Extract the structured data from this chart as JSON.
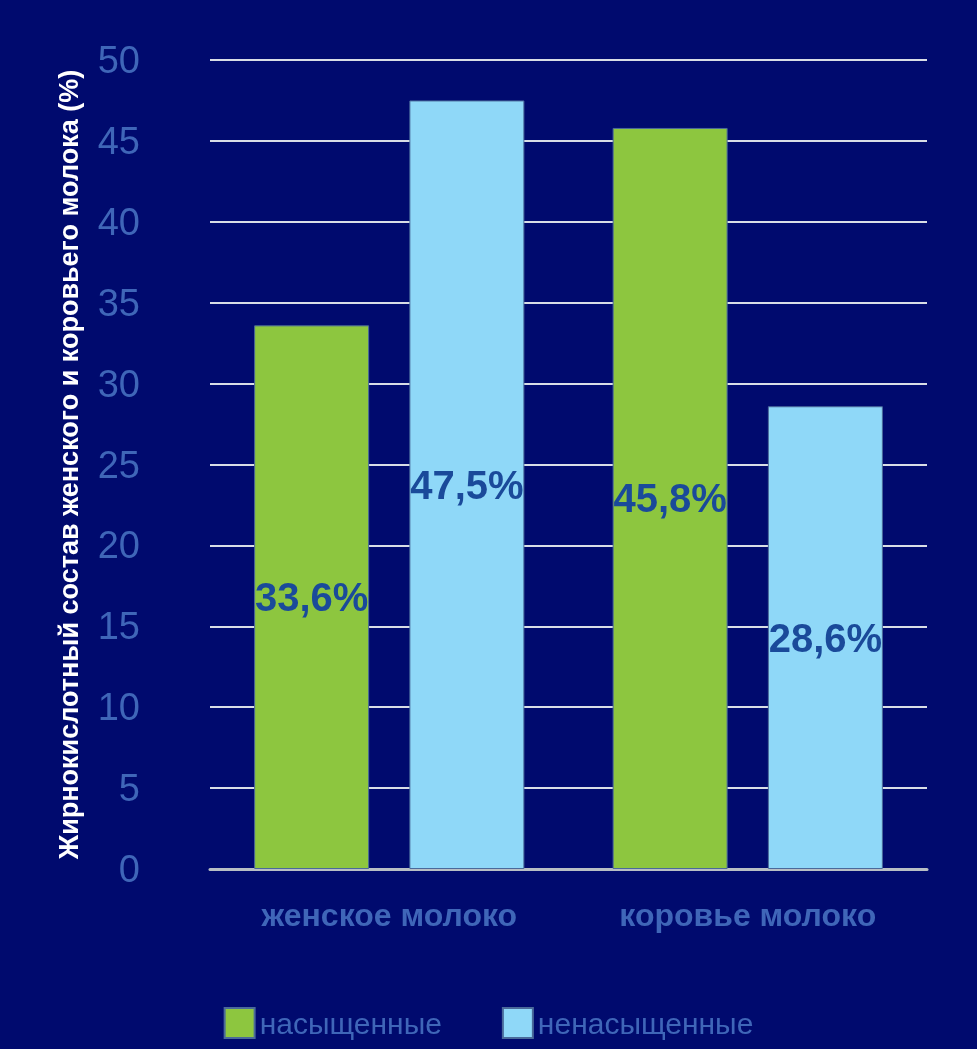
{
  "chart_data": {
    "type": "bar",
    "ylabel": "Жирнокислотный состав женского и коровьего молока (%)",
    "categories": [
      "женское молоко",
      "коровье молоко"
    ],
    "series": [
      {
        "name": "насыщенные",
        "color": "#8dc63f",
        "values": [
          33.6,
          45.8
        ],
        "value_labels": [
          "33,6%",
          "45,8%"
        ]
      },
      {
        "name": "ненасыщенные",
        "color": "#8fd8f8",
        "values": [
          47.5,
          28.6
        ],
        "value_labels": [
          "47,5%",
          "28,6%"
        ]
      }
    ],
    "ylim": [
      0,
      50
    ],
    "yticks": [
      0,
      5,
      10,
      15,
      20,
      25,
      30,
      35,
      40,
      45,
      50
    ],
    "grid": "y",
    "legend": "bottom"
  }
}
